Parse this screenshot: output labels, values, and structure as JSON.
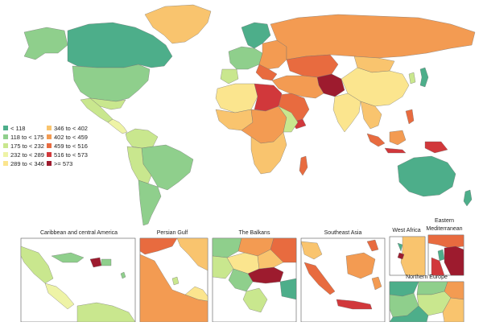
{
  "legend": {
    "items": [
      {
        "label": "< 118",
        "color": "#4dae8a"
      },
      {
        "label": "118 to < 175",
        "color": "#8fcf8c"
      },
      {
        "label": "175 to < 232",
        "color": "#c9e78e"
      },
      {
        "label": "232 to < 289",
        "color": "#eef3a6"
      },
      {
        "label": "289 to < 346",
        "color": "#fbe58e"
      },
      {
        "label": "346 to < 402",
        "color": "#f9c46e"
      },
      {
        "label": "402 to < 459",
        "color": "#f39b52"
      },
      {
        "label": "459 to < 516",
        "color": "#e86b3f"
      },
      {
        "label": "516 to < 573",
        "color": "#d1383b"
      },
      {
        "label": ">= 573",
        "color": "#9d1b2e"
      }
    ]
  },
  "insets": [
    {
      "title": "Caribbean and central America"
    },
    {
      "title": "Persian Gulf"
    },
    {
      "title": "The Balkans"
    },
    {
      "title": "Southeast Asia"
    },
    {
      "title": "West Africa"
    },
    {
      "title_line1": "Eastern",
      "title_line2": "Mediterranean"
    },
    {
      "title": "Northern Europe"
    }
  ]
}
